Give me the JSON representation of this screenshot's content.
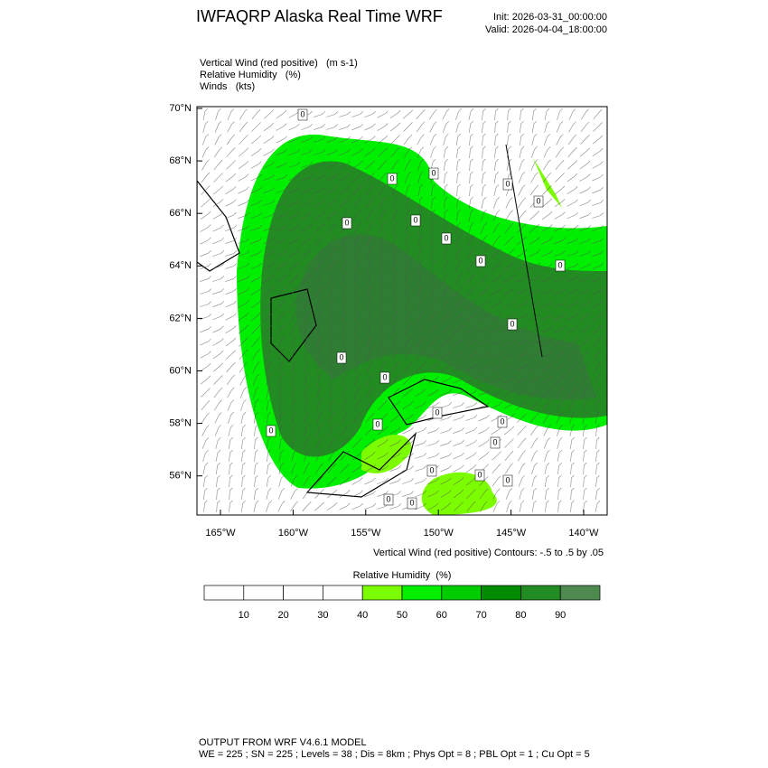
{
  "header": {
    "title": "IWFAQRP Alaska Real Time WRF",
    "init": "Init: 2026-03-31_00:00:00",
    "valid": "Valid: 2026-04-04_18:00:00"
  },
  "fields": [
    "Vertical Wind (red positive)   (m s-1)",
    "Relative Humidity   (%)",
    "Winds   (kts)"
  ],
  "map": {
    "lat_labels": [
      "70°N",
      "68°N",
      "66°N",
      "64°N",
      "62°N",
      "60°N",
      "58°N",
      "56°N"
    ],
    "lon_labels": [
      "165°W",
      "160°W",
      "155°W",
      "150°W",
      "145°W",
      "140°W"
    ],
    "contour_label": "0",
    "contour_note": "Vertical Wind (red positive) Contours: -.5 to .5 by .05"
  },
  "colorbar": {
    "title": "Relative Humidity  (%)",
    "ticks": [
      10,
      20,
      30,
      40,
      50,
      60,
      70,
      80,
      90
    ],
    "colors": [
      "#ffffff",
      "#ffffff",
      "#ffffff",
      "#ffffff",
      "#7cfc00",
      "#00ee00",
      "#00cd00",
      "#008b00",
      "#228b22",
      "#4e8a50"
    ]
  },
  "footer": [
    "OUTPUT FROM WRF V4.6.1 MODEL",
    "WE = 225 ; SN = 225 ; Levels = 38 ; Dis = 8km ; Phys Opt = 8 ; PBL Opt = 1 ; Cu Opt = 5"
  ]
}
